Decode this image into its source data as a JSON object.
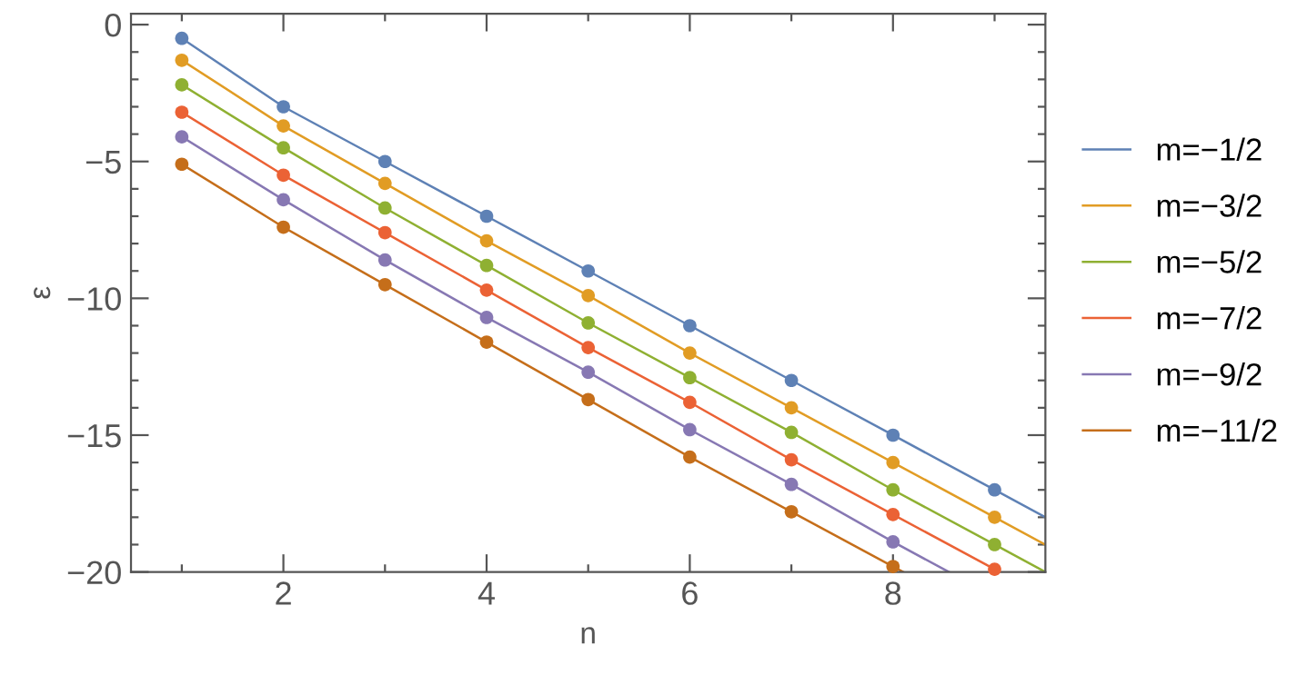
{
  "chart_data": {
    "type": "line",
    "xlabel": "n",
    "ylabel": "ε",
    "xlim": [
      0.5,
      9.5
    ],
    "ylim": [
      -20,
      0.4
    ],
    "xticks": [
      {
        "value": 1,
        "label": null
      },
      2,
      {
        "value": 3,
        "label": null
      },
      4,
      {
        "value": 5,
        "label": null
      },
      6,
      {
        "value": 7,
        "label": null
      },
      8,
      {
        "value": 9,
        "label": null
      }
    ],
    "yticks": [
      -20,
      {
        "value": -19,
        "label": null
      },
      {
        "value": -18,
        "label": null
      },
      {
        "value": -17,
        "label": null
      },
      {
        "value": -16,
        "label": null
      },
      -15,
      {
        "value": -14,
        "label": null
      },
      {
        "value": -13,
        "label": null
      },
      {
        "value": -12,
        "label": null
      },
      {
        "value": -11,
        "label": null
      },
      -10,
      {
        "value": -9,
        "label": null
      },
      {
        "value": -8,
        "label": null
      },
      {
        "value": -7,
        "label": null
      },
      {
        "value": -6,
        "label": null
      },
      -5,
      {
        "value": -4,
        "label": null
      },
      {
        "value": -3,
        "label": null
      },
      {
        "value": -2,
        "label": null
      },
      {
        "value": -1,
        "label": null
      },
      0
    ],
    "legend": "right",
    "grid": false,
    "line_style": "solid",
    "series": [
      {
        "name": "m=−1/2",
        "color": "#5e81b5",
        "x": [
          1,
          2,
          3,
          4,
          5,
          6,
          7,
          8,
          9,
          9.5
        ],
        "values": [
          -0.5,
          -3,
          -5,
          -7,
          -9,
          -11,
          -13,
          -15,
          -17,
          -18
        ]
      },
      {
        "name": "m=−3/2",
        "color": "#e19c24",
        "x": [
          1,
          2,
          3,
          4,
          5,
          6,
          7,
          8,
          9,
          9.5
        ],
        "values": [
          -1.3,
          -3.7,
          -5.8,
          -7.9,
          -9.9,
          -12,
          -14,
          -16,
          -18,
          -19
        ]
      },
      {
        "name": "m=−5/2",
        "color": "#8fb032",
        "x": [
          1,
          2,
          3,
          4,
          5,
          6,
          7,
          8,
          9,
          9.5
        ],
        "values": [
          -2.2,
          -4.5,
          -6.7,
          -8.8,
          -10.9,
          -12.9,
          -14.9,
          -17,
          -19,
          -20
        ]
      },
      {
        "name": "m=−7/2",
        "color": "#eb6235",
        "x": [
          1,
          2,
          3,
          4,
          5,
          6,
          7,
          8,
          9
        ],
        "values": [
          -3.2,
          -5.5,
          -7.6,
          -9.7,
          -11.8,
          -13.8,
          -15.9,
          -17.9,
          -19.9
        ]
      },
      {
        "name": "m=−9/2",
        "color": "#8778b3",
        "x": [
          1,
          2,
          3,
          4,
          5,
          6,
          7,
          8,
          8.55
        ],
        "values": [
          -4.1,
          -6.4,
          -8.6,
          -10.7,
          -12.7,
          -14.8,
          -16.8,
          -18.9,
          -20
        ]
      },
      {
        "name": "m=−11/2",
        "color": "#c56e1a",
        "x": [
          1,
          2,
          3,
          4,
          5,
          6,
          7,
          8,
          8.1
        ],
        "values": [
          -5.1,
          -7.4,
          -9.5,
          -11.6,
          -13.7,
          -15.8,
          -17.8,
          -19.8,
          -20
        ]
      },
      {
        "type": "scatter",
        "marker": "circle",
        "color": "#5e81b5",
        "x": [
          1,
          2,
          3,
          4,
          5,
          6,
          7,
          8,
          9
        ],
        "values": [
          -0.5,
          -3,
          -5,
          -7,
          -9,
          -11,
          -13,
          -15,
          -17
        ]
      },
      {
        "type": "scatter",
        "marker": "circle",
        "color": "#e19c24",
        "x": [
          1,
          2,
          3,
          4,
          5,
          6,
          7,
          8,
          9
        ],
        "values": [
          -1.3,
          -3.7,
          -5.8,
          -7.9,
          -9.9,
          -12,
          -14,
          -16,
          -18
        ]
      },
      {
        "type": "scatter",
        "marker": "circle",
        "color": "#8fb032",
        "x": [
          1,
          2,
          3,
          4,
          5,
          6,
          7,
          8,
          9
        ],
        "values": [
          -2.2,
          -4.5,
          -6.7,
          -8.8,
          -10.9,
          -12.9,
          -14.9,
          -17,
          -19
        ]
      },
      {
        "type": "scatter",
        "marker": "circle",
        "color": "#eb6235",
        "x": [
          1,
          2,
          3,
          4,
          5,
          6,
          7,
          8,
          9
        ],
        "values": [
          -3.2,
          -5.5,
          -7.6,
          -9.7,
          -11.8,
          -13.8,
          -15.9,
          -17.9,
          -19.9
        ]
      },
      {
        "type": "scatter",
        "marker": "circle",
        "color": "#8778b3",
        "x": [
          1,
          2,
          3,
          4,
          5,
          6,
          7,
          8
        ],
        "values": [
          -4.1,
          -6.4,
          -8.6,
          -10.7,
          -12.7,
          -14.8,
          -16.8,
          -18.9
        ]
      },
      {
        "type": "scatter",
        "marker": "circle",
        "color": "#c56e1a",
        "x": [
          1,
          2,
          3,
          4,
          5,
          6,
          7,
          8
        ],
        "values": [
          -5.1,
          -7.4,
          -9.5,
          -11.6,
          -13.7,
          -15.8,
          -17.8,
          -19.8
        ]
      }
    ]
  }
}
